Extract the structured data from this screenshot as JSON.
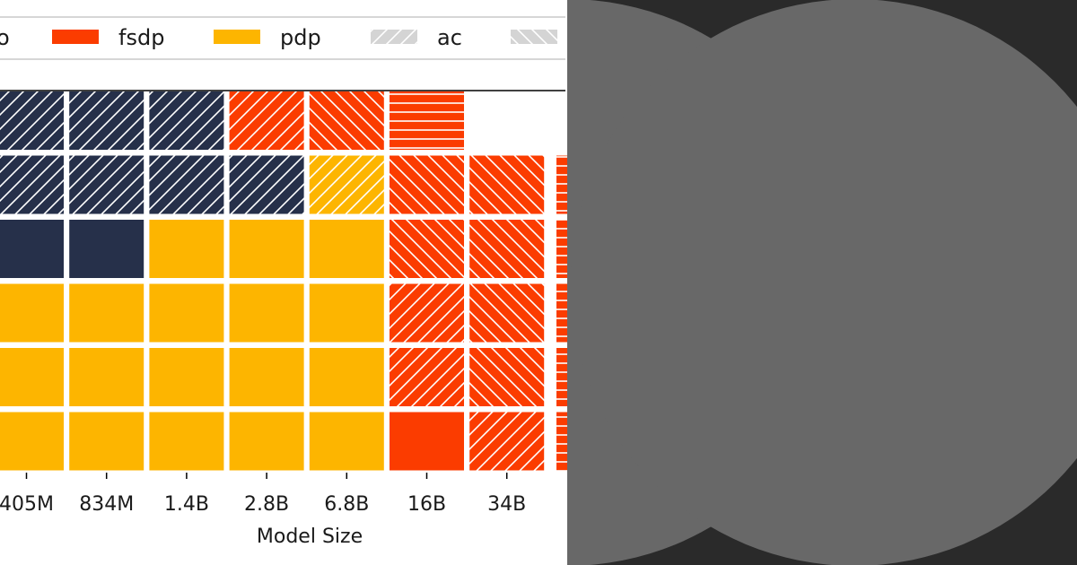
{
  "chart_data": {
    "type": "heatmap",
    "title": "",
    "xlabel": "Model Size",
    "ylabel": "",
    "columns": [
      "405M",
      "834M",
      "1.4B",
      "2.8B",
      "6.8B",
      "16B",
      "34B"
    ],
    "legend": {
      "placement": "top",
      "entries": [
        {
          "label": "o",
          "kind": "partial",
          "color": "#26304a",
          "hatch": "none"
        },
        {
          "label": "fsdp",
          "color": "#fb3c00",
          "hatch": "none"
        },
        {
          "label": "pdp",
          "color": "#fdb500",
          "hatch": "none"
        },
        {
          "label": "ac",
          "color": "#d4d4d4",
          "hatch": "fwd"
        },
        {
          "label": "",
          "color": "#d4d4d4",
          "hatch": "back"
        }
      ]
    },
    "colors": {
      "dp": "#26304a",
      "fsdp": "#fb3c00",
      "pdp": "#fdb500"
    },
    "grid_rows": [
      [
        "dp:fwd",
        "dp:fwd",
        "dp:fwd",
        "fsdp:fwd",
        "fsdp:back",
        "fsdp:horiz",
        "empty"
      ],
      [
        "dp:fwd",
        "dp:fwd",
        "dp:fwd",
        "dp:fwd",
        "pdp:fwd",
        "fsdp:back",
        "fsdp:back"
      ],
      [
        "dp:none",
        "dp:none",
        "pdp:none",
        "pdp:none",
        "pdp:none",
        "fsdp:back",
        "fsdp:back"
      ],
      [
        "pdp:none",
        "pdp:none",
        "pdp:none",
        "pdp:none",
        "pdp:none",
        "fsdp:fwd",
        "fsdp:back"
      ],
      [
        "pdp:none",
        "pdp:none",
        "pdp:none",
        "pdp:none",
        "pdp:none",
        "fsdp:fwd",
        "fsdp:back"
      ],
      [
        "pdp:none",
        "pdp:none",
        "pdp:none",
        "pdp:none",
        "pdp:none",
        "fsdp:none",
        "fsdp:fwd"
      ]
    ]
  },
  "side_panel": {
    "background": "#2a2a2a",
    "disc_color": "#686868"
  }
}
